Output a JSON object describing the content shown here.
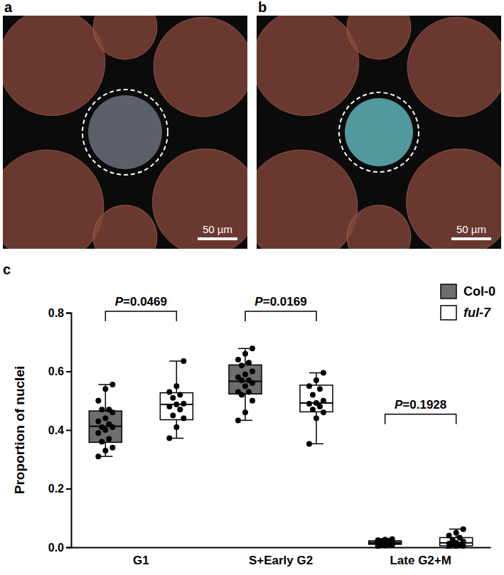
{
  "images": [
    {
      "label": "a",
      "scale_bar": "50 µm"
    },
    {
      "label": "b",
      "scale_bar": "50 µm"
    }
  ],
  "chart_data": {
    "type": "box",
    "panel_label": "c",
    "y_label": "Proportion of nuclei",
    "categories": [
      "G1",
      "S+Early G2",
      "Late G2+M"
    ],
    "ylim": [
      0,
      0.8
    ],
    "yticks": [
      {
        "value": 0,
        "label": "0.0"
      },
      {
        "value": 0.2,
        "label": "0.2"
      },
      {
        "value": 0.4,
        "label": "0.4"
      },
      {
        "value": 0.6,
        "label": "0.6"
      },
      {
        "value": 0.8,
        "label": "0.8"
      }
    ],
    "legend": "top-right",
    "series": [
      {
        "name": "Col-0",
        "color": "#6e6e6e",
        "boxes": [
          {
            "min": 0.31,
            "q1": 0.358,
            "median": 0.413,
            "q3": 0.465,
            "max": 0.555
          },
          {
            "min": 0.433,
            "q1": 0.523,
            "median": 0.566,
            "q3": 0.622,
            "max": 0.678
          },
          {
            "min": 0.003,
            "q1": 0.01,
            "median": 0.015,
            "q3": 0.022,
            "max": 0.028
          }
        ],
        "points": [
          [
            0.31,
            0.33,
            0.34,
            0.36,
            0.37,
            0.39,
            0.4,
            0.41,
            0.41,
            0.42,
            0.43,
            0.44,
            0.46,
            0.47,
            0.47,
            0.5,
            0.54,
            0.555
          ],
          [
            0.433,
            0.46,
            0.5,
            0.52,
            0.53,
            0.53,
            0.55,
            0.56,
            0.57,
            0.57,
            0.58,
            0.59,
            0.6,
            0.62,
            0.63,
            0.64,
            0.66,
            0.678
          ],
          [
            0.003,
            0.006,
            0.008,
            0.009,
            0.01,
            0.011,
            0.012,
            0.013,
            0.014,
            0.015,
            0.016,
            0.018,
            0.02,
            0.021,
            0.022,
            0.024,
            0.026,
            0.028
          ]
        ]
      },
      {
        "name": "ful-7",
        "color": "#ffffff",
        "boxes": [
          {
            "min": 0.372,
            "q1": 0.435,
            "median": 0.487,
            "q3": 0.527,
            "max": 0.635
          },
          {
            "min": 0.353,
            "q1": 0.462,
            "median": 0.492,
            "q3": 0.553,
            "max": 0.595
          },
          {
            "min": 0,
            "q1": 0.005,
            "median": 0.015,
            "q3": 0.033,
            "max": 0.062
          }
        ],
        "points": [
          [
            0.372,
            0.41,
            0.44,
            0.45,
            0.47,
            0.48,
            0.487,
            0.49,
            0.51,
            0.52,
            0.53,
            0.55,
            0.635
          ],
          [
            0.353,
            0.44,
            0.46,
            0.47,
            0.48,
            0.49,
            0.492,
            0.5,
            0.52,
            0.54,
            0.55,
            0.57,
            0.595
          ],
          [
            0,
            0.002,
            0.005,
            0.008,
            0.01,
            0.012,
            0.015,
            0.02,
            0.025,
            0.033,
            0.04,
            0.05,
            0.062
          ]
        ]
      }
    ],
    "annotations": [
      {
        "category": 0,
        "text": "P=0.0469",
        "y": 0.805
      },
      {
        "category": 1,
        "text": "P=0.0169",
        "y": 0.805
      },
      {
        "category": 2,
        "text": "P=0.1928",
        "y": 0.454
      }
    ]
  }
}
